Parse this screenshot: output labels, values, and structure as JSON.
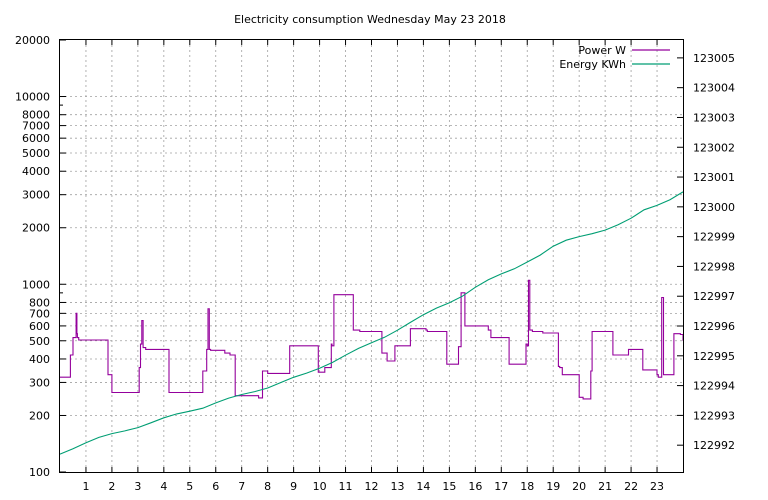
{
  "chart_data": {
    "type": "line",
    "title": "Electricity consumption Wednesday May 23 2018",
    "xlabel": "",
    "ylabel": "",
    "xlim": [
      0,
      24
    ],
    "x_ticks": [
      1,
      2,
      3,
      4,
      5,
      6,
      7,
      8,
      9,
      10,
      11,
      12,
      13,
      14,
      15,
      16,
      17,
      18,
      19,
      20,
      21,
      22,
      23
    ],
    "y_scale": "log",
    "ylim": [
      100,
      20000
    ],
    "y_ticks": [
      100,
      200,
      300,
      400,
      500,
      600,
      700,
      800,
      1000,
      2000,
      3000,
      4000,
      5000,
      6000,
      7000,
      8000,
      10000,
      20000
    ],
    "y_tick_labels": [
      "100",
      "200",
      "300",
      "400",
      "500",
      "600",
      "700",
      "800",
      "1000",
      "2000",
      "3000",
      "4000",
      "5000",
      "6000",
      "7000",
      "8000",
      "10000",
      "20000"
    ],
    "y2_scale": "linear",
    "y2lim": [
      122991.1,
      123005.6
    ],
    "y2_ticks": [
      122992,
      122993,
      122994,
      122995,
      122996,
      122997,
      122998,
      122999,
      123000,
      123001,
      123002,
      123003,
      123004,
      123005
    ],
    "grid": true,
    "legend_position": "top-right",
    "colors": {
      "power": "#94009c",
      "energy": "#009e73"
    },
    "series": [
      {
        "name": "Power W",
        "axis": "left",
        "step": true,
        "x": [
          0,
          0.4,
          0.5,
          0.62,
          0.65,
          0.67,
          0.72,
          1.75,
          1.85,
          2.0,
          2.95,
          3.05,
          3.1,
          3.15,
          3.2,
          3.3,
          4.15,
          4.2,
          5.4,
          5.5,
          5.65,
          5.7,
          5.75,
          5.8,
          6.35,
          6.55,
          6.75,
          7.6,
          7.65,
          7.8,
          8.0,
          8.85,
          8.95,
          9.95,
          10.2,
          10.45,
          10.48,
          10.55,
          11.3,
          11.55,
          12.4,
          12.45,
          12.6,
          12.9,
          13.5,
          14.1,
          14.15,
          14.9,
          15.3,
          15.35,
          15.45,
          15.6,
          16.5,
          16.55,
          16.6,
          17.3,
          17.95,
          18.0,
          18.05,
          18.1,
          18.2,
          18.6,
          18.95,
          19.2,
          19.25,
          19.35,
          20.0,
          20.05,
          20.15,
          20.45,
          20.5,
          21.3,
          21.9,
          22.45,
          23.0,
          23.05,
          23.18,
          23.25,
          23.65,
          23.9,
          24.0
        ],
        "y": [
          320,
          420,
          520,
          700,
          545,
          520,
          505,
          505,
          330,
          265,
          265,
          360,
          480,
          640,
          460,
          450,
          450,
          265,
          265,
          345,
          450,
          740,
          450,
          445,
          430,
          420,
          255,
          255,
          248,
          345,
          335,
          470,
          470,
          340,
          360,
          480,
          470,
          880,
          570,
          560,
          430,
          430,
          390,
          470,
          580,
          570,
          560,
          375,
          375,
          465,
          900,
          600,
          570,
          570,
          520,
          375,
          480,
          470,
          1050,
          570,
          560,
          550,
          550,
          365,
          360,
          330,
          250,
          250,
          245,
          345,
          560,
          420,
          450,
          350,
          330,
          320,
          850,
          330,
          545,
          540,
          500
        ]
      },
      {
        "name": "Energy KWh",
        "axis": "right",
        "step": false,
        "x": [
          0,
          0.5,
          1,
          1.5,
          2,
          2.5,
          3,
          3.5,
          4,
          4.5,
          5,
          5.5,
          6,
          6.5,
          7,
          7.5,
          8,
          8.5,
          9,
          9.5,
          10,
          10.5,
          11,
          11.5,
          12,
          12.5,
          13,
          13.5,
          14,
          14.5,
          15,
          15.5,
          16,
          16.5,
          17,
          17.5,
          18,
          18.5,
          19,
          19.5,
          20,
          20.5,
          21,
          21.5,
          22,
          22.5,
          23,
          23.5,
          24
        ],
        "y": [
          122991.7,
          122991.88,
          122992.08,
          122992.26,
          122992.39,
          122992.48,
          122992.59,
          122992.75,
          122992.92,
          122993.05,
          122993.14,
          122993.24,
          122993.42,
          122993.58,
          122993.7,
          122993.8,
          122993.92,
          122994.1,
          122994.28,
          122994.42,
          122994.58,
          122994.78,
          122995.02,
          122995.25,
          122995.44,
          122995.62,
          122995.86,
          122996.12,
          122996.38,
          122996.6,
          122996.78,
          122997.0,
          122997.3,
          122997.55,
          122997.75,
          122997.92,
          122998.15,
          122998.38,
          122998.68,
          122998.88,
          122999.0,
          122999.1,
          122999.22,
          122999.4,
          122999.62,
          122999.9,
          123000.05,
          123000.24,
          123000.5
        ]
      }
    ]
  }
}
